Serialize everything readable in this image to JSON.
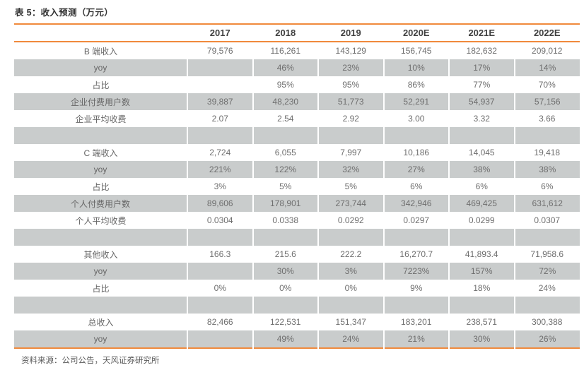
{
  "title": "表 5：收入预测（万元）",
  "source": "资料来源：公司公告，天风证券研究所",
  "colors": {
    "accent_orange": "#F08A3C",
    "row_shade": "#C9CCCC",
    "header_text": "#404040",
    "body_text": "#6E6E6E"
  },
  "table": {
    "columns": [
      "2017",
      "2018",
      "2019",
      "2020E",
      "2021E",
      "2022E"
    ],
    "rows": [
      {
        "label": "B 端收入",
        "values": [
          "79,576",
          "116,261",
          "143,129",
          "156,745",
          "182,632",
          "209,012"
        ],
        "shaded": false
      },
      {
        "label": "yoy",
        "values": [
          "",
          "46%",
          "23%",
          "10%",
          "17%",
          "14%"
        ],
        "shaded": true
      },
      {
        "label": "占比",
        "values": [
          "",
          "95%",
          "95%",
          "86%",
          "77%",
          "70%"
        ],
        "shaded": false
      },
      {
        "label": "企业付费用户数",
        "values": [
          "39,887",
          "48,230",
          "51,773",
          "52,291",
          "54,937",
          "57,156"
        ],
        "shaded": true
      },
      {
        "label": "企业平均收费",
        "values": [
          "2.07",
          "2.54",
          "2.92",
          "3.00",
          "3.32",
          "3.66"
        ],
        "shaded": false
      },
      {
        "label": "",
        "values": [
          "",
          "",
          "",
          "",
          "",
          ""
        ],
        "shaded": true
      },
      {
        "label": "C 端收入",
        "values": [
          "2,724",
          "6,055",
          "7,997",
          "10,186",
          "14,045",
          "19,418"
        ],
        "shaded": false
      },
      {
        "label": "yoy",
        "values": [
          "221%",
          "122%",
          "32%",
          "27%",
          "38%",
          "38%"
        ],
        "shaded": true
      },
      {
        "label": "占比",
        "values": [
          "3%",
          "5%",
          "5%",
          "6%",
          "6%",
          "6%"
        ],
        "shaded": false
      },
      {
        "label": "个人付费用户数",
        "values": [
          "89,606",
          "178,901",
          "273,744",
          "342,946",
          "469,425",
          "631,612"
        ],
        "shaded": true
      },
      {
        "label": "个人平均收费",
        "values": [
          "0.0304",
          "0.0338",
          "0.0292",
          "0.0297",
          "0.0299",
          "0.0307"
        ],
        "shaded": false
      },
      {
        "label": "",
        "values": [
          "",
          "",
          "",
          "",
          "",
          ""
        ],
        "shaded": true
      },
      {
        "label": "其他收入",
        "values": [
          "166.3",
          "215.6",
          "222.2",
          "16,270.7",
          "41,893.4",
          "71,958.6"
        ],
        "shaded": false
      },
      {
        "label": "yoy",
        "values": [
          "",
          "30%",
          "3%",
          "7223%",
          "157%",
          "72%"
        ],
        "shaded": true
      },
      {
        "label": "占比",
        "values": [
          "0%",
          "0%",
          "0%",
          "9%",
          "18%",
          "24%"
        ],
        "shaded": false
      },
      {
        "label": "",
        "values": [
          "",
          "",
          "",
          "",
          "",
          ""
        ],
        "shaded": true
      },
      {
        "label": "总收入",
        "values": [
          "82,466",
          "122,531",
          "151,347",
          "183,201",
          "238,571",
          "300,388"
        ],
        "shaded": false
      },
      {
        "label": "yoy",
        "values": [
          "",
          "49%",
          "24%",
          "21%",
          "30%",
          "26%"
        ],
        "shaded": true
      }
    ]
  },
  "chart_data": {
    "type": "table",
    "title": "收入预测（万元）",
    "categories": [
      "2017",
      "2018",
      "2019",
      "2020E",
      "2021E",
      "2022E"
    ],
    "series": [
      {
        "name": "B 端收入",
        "values": [
          79576,
          116261,
          143129,
          156745,
          182632,
          209012
        ]
      },
      {
        "name": "C 端收入",
        "values": [
          2724,
          6055,
          7997,
          10186,
          14045,
          19418
        ]
      },
      {
        "name": "其他收入",
        "values": [
          166.3,
          215.6,
          222.2,
          16270.7,
          41893.4,
          71958.6
        ]
      },
      {
        "name": "总收入",
        "values": [
          82466,
          122531,
          151347,
          183201,
          238571,
          300388
        ]
      }
    ]
  }
}
